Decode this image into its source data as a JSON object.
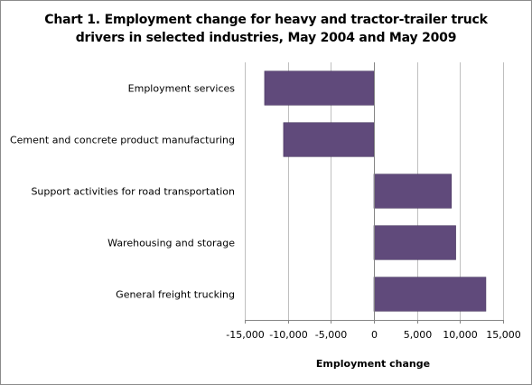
{
  "chart_data": {
    "type": "bar",
    "orientation": "horizontal",
    "title_lines": [
      "Chart 1. Employment change for heavy and tractor-trailer truck",
      "drivers in selected industries, May 2004 and May 2009"
    ],
    "categories": [
      "Employment services",
      "Cement and concrete product manufacturing",
      "Support activities for road transportation",
      "Warehousing and storage",
      "General freight trucking"
    ],
    "values": [
      -12700,
      -10500,
      9000,
      9500,
      13000
    ],
    "xlabel": "Employment change",
    "ylabel": "",
    "xlim": [
      -15000,
      15000
    ],
    "ticks": [
      -15000,
      -10000,
      -5000,
      0,
      5000,
      10000,
      15000
    ],
    "tick_labels": [
      "-15,000",
      "-10,000",
      "-5,000",
      "0",
      "5,000",
      "10,000",
      "15,000"
    ],
    "grid": true,
    "legend": "none",
    "bar_color": "#604a7b",
    "grid_color": "#bfbfbf",
    "axis_color": "#868686"
  }
}
